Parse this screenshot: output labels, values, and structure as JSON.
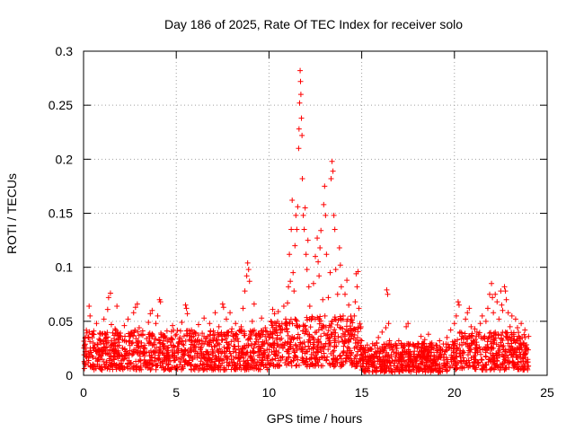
{
  "chart_data": {
    "type": "scatter",
    "title": "Day 186 of 2025, Rate Of TEC Index for receiver solo",
    "xlabel": "GPS time / hours",
    "ylabel": "ROTI / TECUs",
    "xlim": [
      0,
      25
    ],
    "ylim": [
      0,
      0.3
    ],
    "x_ticks": [
      0,
      5,
      10,
      15,
      20,
      25
    ],
    "x_tick_labels": [
      "0",
      "5",
      "10",
      "15",
      "20",
      "25"
    ],
    "y_ticks": [
      0,
      0.05,
      0.1,
      0.15,
      0.2,
      0.25,
      0.3
    ],
    "y_tick_labels": [
      "0",
      "0.05",
      "0.1",
      "0.15",
      "0.2",
      "0.25",
      "0.3"
    ],
    "grid": true,
    "marker": "plus",
    "color": "#ff0000",
    "series": [
      {
        "name": "ROTI",
        "points": [
          [
            0.05,
            0.028
          ],
          [
            0.15,
            0.022
          ],
          [
            0.25,
            0.035
          ],
          [
            0.3,
            0.064
          ],
          [
            0.35,
            0.055
          ],
          [
            0.45,
            0.018
          ],
          [
            0.55,
            0.041
          ],
          [
            0.6,
            0.026
          ],
          [
            0.7,
            0.048
          ],
          [
            0.8,
            0.015
          ],
          [
            0.9,
            0.032
          ],
          [
            1.0,
            0.022
          ],
          [
            1.1,
            0.052
          ],
          [
            1.2,
            0.038
          ],
          [
            1.3,
            0.061
          ],
          [
            1.35,
            0.072
          ],
          [
            1.45,
            0.076
          ],
          [
            1.5,
            0.047
          ],
          [
            1.6,
            0.028
          ],
          [
            1.7,
            0.043
          ],
          [
            1.8,
            0.064
          ],
          [
            1.9,
            0.019
          ],
          [
            2.0,
            0.036
          ],
          [
            2.1,
            0.025
          ],
          [
            2.2,
            0.046
          ],
          [
            2.3,
            0.031
          ],
          [
            2.4,
            0.052
          ],
          [
            2.5,
            0.023
          ],
          [
            2.6,
            0.039
          ],
          [
            2.7,
            0.058
          ],
          [
            2.8,
            0.063
          ],
          [
            2.9,
            0.066
          ],
          [
            3.0,
            0.044
          ],
          [
            3.1,
            0.027
          ],
          [
            3.2,
            0.038
          ],
          [
            3.3,
            0.021
          ],
          [
            3.4,
            0.034
          ],
          [
            3.5,
            0.049
          ],
          [
            3.6,
            0.057
          ],
          [
            3.7,
            0.06
          ],
          [
            3.8,
            0.03
          ],
          [
            3.9,
            0.048
          ],
          [
            4.0,
            0.055
          ],
          [
            4.1,
            0.07
          ],
          [
            4.15,
            0.068
          ],
          [
            4.3,
            0.035
          ],
          [
            4.4,
            0.024
          ],
          [
            4.5,
            0.041
          ],
          [
            4.6,
            0.019
          ],
          [
            4.7,
            0.033
          ],
          [
            4.8,
            0.046
          ],
          [
            4.9,
            0.026
          ],
          [
            5.0,
            0.038
          ],
          [
            5.1,
            0.021
          ],
          [
            5.2,
            0.035
          ],
          [
            5.3,
            0.049
          ],
          [
            5.4,
            0.028
          ],
          [
            5.5,
            0.065
          ],
          [
            5.55,
            0.062
          ],
          [
            5.6,
            0.057
          ],
          [
            5.7,
            0.033
          ],
          [
            5.8,
            0.024
          ],
          [
            5.9,
            0.04
          ],
          [
            6.0,
            0.018
          ],
          [
            6.1,
            0.031
          ],
          [
            6.2,
            0.047
          ],
          [
            6.3,
            0.025
          ],
          [
            6.4,
            0.039
          ],
          [
            6.5,
            0.053
          ],
          [
            6.6,
            0.022
          ],
          [
            6.7,
            0.036
          ],
          [
            6.8,
            0.048
          ],
          [
            6.9,
            0.027
          ],
          [
            7.0,
            0.041
          ],
          [
            7.1,
            0.058
          ],
          [
            7.2,
            0.033
          ],
          [
            7.3,
            0.045
          ],
          [
            7.4,
            0.022
          ],
          [
            7.5,
            0.066
          ],
          [
            7.55,
            0.063
          ],
          [
            7.6,
            0.038
          ],
          [
            7.7,
            0.052
          ],
          [
            7.8,
            0.029
          ],
          [
            7.9,
            0.058
          ],
          [
            8.0,
            0.043
          ],
          [
            8.1,
            0.027
          ],
          [
            8.2,
            0.048
          ],
          [
            8.3,
            0.034
          ],
          [
            8.4,
            0.021
          ],
          [
            8.5,
            0.045
          ],
          [
            8.6,
            0.062
          ],
          [
            8.7,
            0.078
          ],
          [
            8.8,
            0.092
          ],
          [
            8.85,
            0.104
          ],
          [
            8.9,
            0.098
          ],
          [
            8.95,
            0.087
          ],
          [
            9.0,
            0.041
          ],
          [
            9.1,
            0.05
          ],
          [
            9.2,
            0.066
          ],
          [
            9.3,
            0.031
          ],
          [
            9.4,
            0.022
          ],
          [
            9.5,
            0.038
          ],
          [
            9.6,
            0.053
          ],
          [
            9.7,
            0.029
          ],
          [
            9.8,
            0.044
          ],
          [
            9.9,
            0.024
          ],
          [
            10.0,
            0.035
          ],
          [
            10.1,
            0.05
          ],
          [
            10.2,
            0.061
          ],
          [
            10.3,
            0.057
          ],
          [
            10.4,
            0.042
          ],
          [
            10.5,
            0.059
          ],
          [
            10.6,
            0.033
          ],
          [
            10.7,
            0.048
          ],
          [
            10.8,
            0.064
          ],
          [
            10.9,
            0.052
          ],
          [
            11.0,
            0.067
          ],
          [
            11.05,
            0.082
          ],
          [
            11.1,
            0.112
          ],
          [
            11.15,
            0.087
          ],
          [
            11.2,
            0.135
          ],
          [
            11.25,
            0.162
          ],
          [
            11.3,
            0.095
          ],
          [
            11.35,
            0.078
          ],
          [
            11.4,
            0.12
          ],
          [
            11.45,
            0.148
          ],
          [
            11.5,
            0.135
          ],
          [
            11.55,
            0.156
          ],
          [
            11.6,
            0.21
          ],
          [
            11.62,
            0.228
          ],
          [
            11.65,
            0.252
          ],
          [
            11.68,
            0.282
          ],
          [
            11.7,
            0.272
          ],
          [
            11.72,
            0.26
          ],
          [
            11.75,
            0.238
          ],
          [
            11.78,
            0.222
          ],
          [
            11.8,
            0.182
          ],
          [
            11.85,
            0.148
          ],
          [
            11.9,
            0.135
          ],
          [
            11.95,
            0.155
          ],
          [
            12.0,
            0.112
          ],
          [
            12.05,
            0.098
          ],
          [
            12.1,
            0.125
          ],
          [
            12.15,
            0.082
          ],
          [
            12.2,
            0.064
          ],
          [
            12.3,
            0.052
          ],
          [
            12.4,
            0.085
          ],
          [
            12.5,
            0.11
          ],
          [
            12.6,
            0.127
          ],
          [
            12.65,
            0.105
          ],
          [
            12.7,
            0.092
          ],
          [
            12.75,
            0.118
          ],
          [
            12.8,
            0.134
          ],
          [
            12.9,
            0.07
          ],
          [
            12.95,
            0.158
          ],
          [
            13.0,
            0.175
          ],
          [
            13.05,
            0.148
          ],
          [
            13.1,
            0.112
          ],
          [
            13.2,
            0.072
          ],
          [
            13.3,
            0.095
          ],
          [
            13.35,
            0.182
          ],
          [
            13.4,
            0.198
          ],
          [
            13.45,
            0.189
          ],
          [
            13.5,
            0.148
          ],
          [
            13.55,
            0.135
          ],
          [
            13.6,
            0.098
          ],
          [
            13.7,
            0.075
          ],
          [
            13.8,
            0.118
          ],
          [
            13.85,
            0.102
          ],
          [
            13.9,
            0.082
          ],
          [
            14.0,
            0.055
          ],
          [
            14.1,
            0.075
          ],
          [
            14.2,
            0.088
          ],
          [
            14.3,
            0.065
          ],
          [
            14.4,
            0.042
          ],
          [
            14.5,
            0.038
          ],
          [
            14.6,
            0.055
          ],
          [
            14.65,
            0.068
          ],
          [
            14.7,
            0.094
          ],
          [
            14.75,
            0.082
          ],
          [
            14.8,
            0.096
          ],
          [
            14.85,
            0.062
          ],
          [
            14.9,
            0.048
          ],
          [
            15.0,
            0.032
          ],
          [
            15.1,
            0.024
          ],
          [
            15.2,
            0.018
          ],
          [
            15.3,
            0.028
          ],
          [
            15.4,
            0.015
          ],
          [
            15.5,
            0.024
          ],
          [
            15.6,
            0.012
          ],
          [
            15.7,
            0.028
          ],
          [
            15.8,
            0.018
          ],
          [
            15.9,
            0.035
          ],
          [
            16.0,
            0.022
          ],
          [
            16.1,
            0.04
          ],
          [
            16.2,
            0.026
          ],
          [
            16.3,
            0.044
          ],
          [
            16.35,
            0.079
          ],
          [
            16.4,
            0.075
          ],
          [
            16.45,
            0.048
          ],
          [
            16.5,
            0.032
          ],
          [
            16.6,
            0.019
          ],
          [
            16.7,
            0.027
          ],
          [
            16.8,
            0.014
          ],
          [
            16.9,
            0.025
          ],
          [
            17.0,
            0.032
          ],
          [
            17.1,
            0.018
          ],
          [
            17.2,
            0.028
          ],
          [
            17.3,
            0.013
          ],
          [
            17.4,
            0.045
          ],
          [
            17.5,
            0.048
          ],
          [
            17.6,
            0.022
          ],
          [
            17.7,
            0.012
          ],
          [
            17.8,
            0.028
          ],
          [
            17.9,
            0.016
          ],
          [
            18.0,
            0.025
          ],
          [
            18.1,
            0.019
          ],
          [
            18.2,
            0.036
          ],
          [
            18.3,
            0.021
          ],
          [
            18.4,
            0.033
          ],
          [
            18.5,
            0.027
          ],
          [
            18.6,
            0.038
          ],
          [
            18.7,
            0.014
          ],
          [
            18.8,
            0.026
          ],
          [
            18.9,
            0.011
          ],
          [
            19.0,
            0.028
          ],
          [
            19.1,
            0.024
          ],
          [
            19.2,
            0.032
          ],
          [
            19.3,
            0.018
          ],
          [
            19.4,
            0.029
          ],
          [
            19.5,
            0.022
          ],
          [
            19.6,
            0.035
          ],
          [
            19.7,
            0.025
          ],
          [
            19.8,
            0.042
          ],
          [
            19.9,
            0.031
          ],
          [
            20.0,
            0.048
          ],
          [
            20.1,
            0.055
          ],
          [
            20.2,
            0.068
          ],
          [
            20.25,
            0.065
          ],
          [
            20.3,
            0.04
          ],
          [
            20.4,
            0.028
          ],
          [
            20.5,
            0.035
          ],
          [
            20.6,
            0.052
          ],
          [
            20.7,
            0.058
          ],
          [
            20.8,
            0.062
          ],
          [
            20.9,
            0.045
          ],
          [
            21.0,
            0.032
          ],
          [
            21.1,
            0.043
          ],
          [
            21.2,
            0.028
          ],
          [
            21.3,
            0.038
          ],
          [
            21.4,
            0.048
          ],
          [
            21.5,
            0.055
          ],
          [
            21.6,
            0.035
          ],
          [
            21.7,
            0.05
          ],
          [
            21.8,
            0.062
          ],
          [
            21.9,
            0.075
          ],
          [
            22.0,
            0.085
          ],
          [
            22.05,
            0.072
          ],
          [
            22.1,
            0.058
          ],
          [
            22.2,
            0.075
          ],
          [
            22.3,
            0.068
          ],
          [
            22.4,
            0.052
          ],
          [
            22.5,
            0.078
          ],
          [
            22.55,
            0.065
          ],
          [
            22.6,
            0.06
          ],
          [
            22.7,
            0.082
          ],
          [
            22.75,
            0.078
          ],
          [
            22.8,
            0.07
          ],
          [
            22.9,
            0.058
          ],
          [
            23.0,
            0.045
          ],
          [
            23.1,
            0.055
          ],
          [
            23.2,
            0.038
          ],
          [
            23.3,
            0.052
          ],
          [
            23.4,
            0.044
          ],
          [
            23.5,
            0.035
          ],
          [
            23.6,
            0.048
          ],
          [
            23.7,
            0.03
          ],
          [
            23.8,
            0.042
          ],
          [
            23.9,
            0.025
          ],
          [
            24.0,
            0.036
          ]
        ],
        "background_band": {
          "x_start": 0.0,
          "x_end": 24.0,
          "segments": [
            {
              "x_start": 0.0,
              "x_end": 10.0,
              "y_min": 0.005,
              "y_max": 0.042
            },
            {
              "x_start": 10.0,
              "x_end": 11.0,
              "y_min": 0.008,
              "y_max": 0.05
            },
            {
              "x_start": 11.0,
              "x_end": 14.5,
              "y_min": 0.008,
              "y_max": 0.055
            },
            {
              "x_start": 14.5,
              "x_end": 15.0,
              "y_min": 0.008,
              "y_max": 0.045
            },
            {
              "x_start": 15.0,
              "x_end": 20.0,
              "y_min": 0.003,
              "y_max": 0.03
            },
            {
              "x_start": 20.0,
              "x_end": 24.0,
              "y_min": 0.005,
              "y_max": 0.04
            }
          ]
        }
      }
    ]
  }
}
